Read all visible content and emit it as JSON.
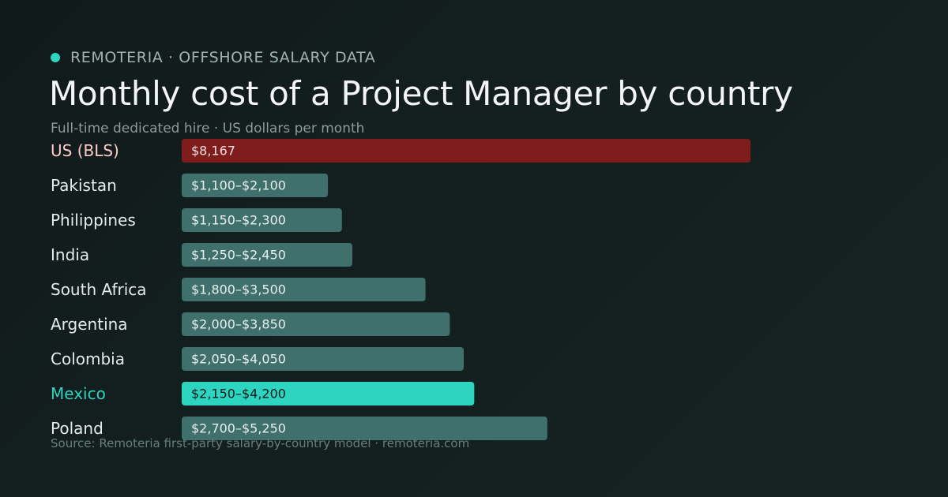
{
  "brand": {
    "name": "REMOTERIA · OFFSHORE SALARY DATA",
    "dot_color": "#2dd4bf"
  },
  "title": "Monthly cost of a Project Manager by country",
  "subtitle": "Full-time dedicated hire · US dollars per month",
  "source": "Source: Remoteria first-party salary-by-country model · remoteria.com",
  "colors": {
    "us": "#7f1d1d",
    "us_label": "#fecaca",
    "default_bar": "#3f706b",
    "highlight": "#2dd4bf",
    "label": "#e6ecea"
  },
  "chart_data": {
    "type": "bar",
    "orientation": "horizontal",
    "title": "Monthly cost of a Project Manager by country",
    "subtitle": "Full-time dedicated hire · US dollars per month",
    "xlabel": "",
    "ylabel": "",
    "grid": false,
    "legend": "none",
    "xlim": [
      0,
      8167
    ],
    "categories": [
      "US (BLS)",
      "Pakistan",
      "Philippines",
      "India",
      "South Africa",
      "Argentina",
      "Colombia",
      "Mexico",
      "Poland"
    ],
    "values": [
      8167,
      2100,
      2300,
      2450,
      3500,
      3850,
      4050,
      4200,
      5250
    ],
    "ranges": [
      [
        8167,
        8167
      ],
      [
        1100,
        2100
      ],
      [
        1150,
        2300
      ],
      [
        1250,
        2450
      ],
      [
        1800,
        3500
      ],
      [
        2000,
        3850
      ],
      [
        2050,
        4050
      ],
      [
        2150,
        4200
      ],
      [
        2700,
        5250
      ]
    ],
    "data_labels": [
      "$8,167",
      "$1,100–$2,100",
      "$1,150–$2,300",
      "$1,250–$2,450",
      "$1,800–$3,500",
      "$2,000–$3,850",
      "$2,050–$4,050",
      "$2,150–$4,200",
      "$2,700–$5,250"
    ],
    "highlight": [
      "us",
      "default",
      "default",
      "default",
      "default",
      "default",
      "default",
      "mexico",
      "default"
    ]
  }
}
